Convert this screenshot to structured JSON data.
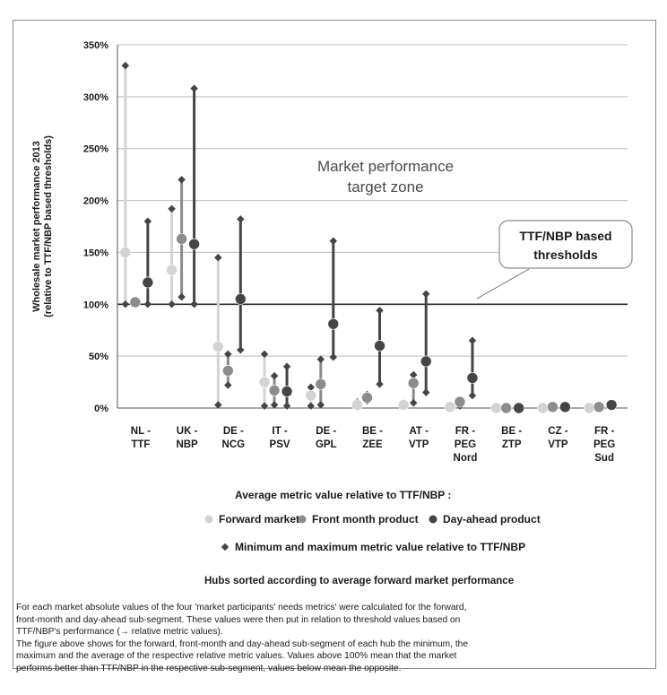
{
  "chart_data": {
    "type": "range-dot",
    "ylabel_lines": [
      "Wholesale market performance 2013",
      "(relative to TTF/NBP based thresholds)"
    ],
    "ylim": [
      0,
      350
    ],
    "yticks": [
      0,
      50,
      100,
      150,
      200,
      250,
      300,
      350
    ],
    "ytick_labels": [
      "0%",
      "50%",
      "100%",
      "150%",
      "200%",
      "250%",
      "300%",
      "350%"
    ],
    "zone_label_lines": [
      "Market performance",
      "target zone"
    ],
    "zone_lower": 100,
    "callout_lines": [
      "TTF/NBP based",
      "thresholds"
    ],
    "categories": [
      [
        "NL -",
        "TTF"
      ],
      [
        "UK -",
        "NBP"
      ],
      [
        "DE -",
        "NCG"
      ],
      [
        "IT -",
        "PSV"
      ],
      [
        "DE -",
        "GPL"
      ],
      [
        "BE -",
        "ZEE"
      ],
      [
        "AT -",
        "VTP"
      ],
      [
        "FR -",
        "PEG",
        "Nord"
      ],
      [
        "BE -",
        "ZTP"
      ],
      [
        "CZ -",
        "VTP"
      ],
      [
        "FR -",
        "PEG",
        "Sud"
      ]
    ],
    "series": [
      {
        "name": "Forward market",
        "color": "#d3d3d3",
        "avg": [
          150,
          133,
          59,
          25,
          12,
          3,
          3,
          1,
          0,
          0,
          0
        ],
        "min": [
          100,
          100,
          3,
          2,
          2,
          2,
          2,
          0,
          0,
          0,
          0
        ],
        "max": [
          330,
          192,
          145,
          52,
          20,
          6,
          5,
          2,
          1,
          1,
          1
        ]
      },
      {
        "name": "Front month product",
        "color": "#8c8c8c",
        "avg": [
          102,
          163,
          36,
          17,
          23,
          10,
          24,
          6,
          0,
          1,
          1
        ],
        "min": [
          100,
          107,
          22,
          3,
          3,
          7,
          5,
          2,
          0,
          0,
          0
        ],
        "max": [
          103,
          220,
          52,
          31,
          47,
          13,
          32,
          8,
          1,
          2,
          2
        ]
      },
      {
        "name": "Day-ahead product",
        "color": "#454545",
        "avg": [
          121,
          158,
          105,
          16,
          81,
          60,
          45,
          29,
          0,
          1,
          3
        ],
        "min": [
          100,
          100,
          56,
          2,
          49,
          23,
          15,
          12,
          0,
          0,
          2
        ],
        "max": [
          180,
          308,
          182,
          40,
          161,
          94,
          110,
          65,
          1,
          2,
          4
        ]
      }
    ]
  },
  "axis_title": "Average metric value relative to TTF/NBP :",
  "legend": {
    "forward": "Forward market",
    "front": "Front month product",
    "dayahead": "Day-ahead product",
    "minmax": "Minimum and maximum metric value relative to TTF/NBP"
  },
  "sort_note": "Hubs sorted according to average forward market performance",
  "notes": [
    "For each market absolute values of the four 'market participants' needs metrics' were calculated for the forward,",
    "front-month and day-ahead sub-segment. These values were then put in relation to threshold values based on",
    "TTF/NBP's performance (→ relative metric values).",
    "The figure above shows for the forward, front-month and day-ahead sub-segment of each hub the minimum, the",
    "maximum and the average of the respective relative metric values. Values above 100% mean that the market",
    "performs better than TTF/NBP in the respective sub-segment, values below mean the opposite."
  ]
}
